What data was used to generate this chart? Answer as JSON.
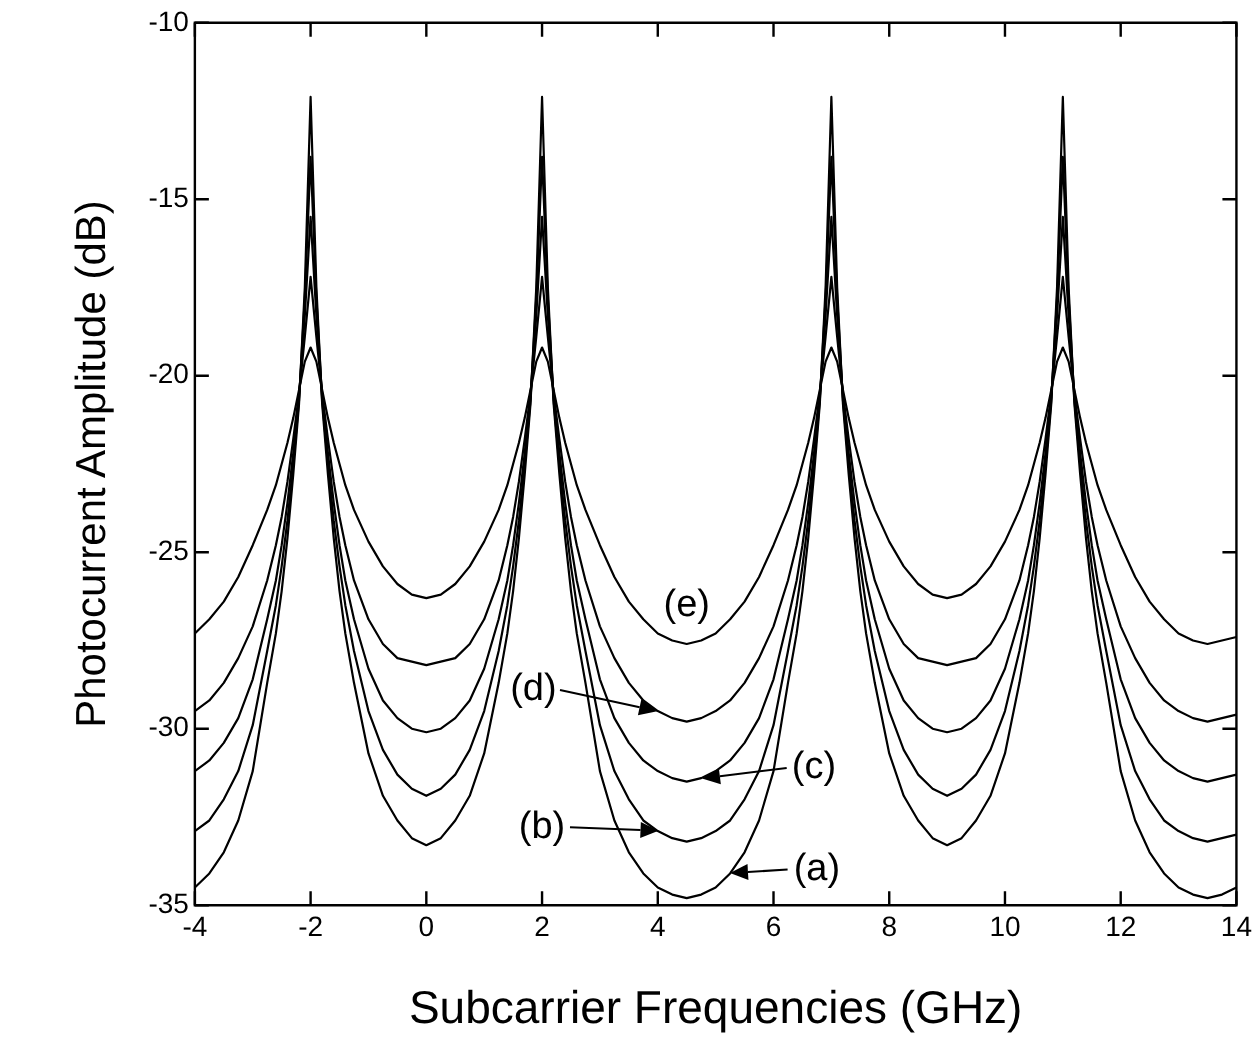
{
  "chart_data": {
    "type": "line",
    "xlabel": "Subcarrier Frequencies (GHz)",
    "ylabel": "Photocurrent Amplitude (dB)",
    "xlim": [
      -4,
      14
    ],
    "ylim": [
      -35,
      -10
    ],
    "xticks": [
      -4,
      -2,
      0,
      2,
      4,
      6,
      8,
      10,
      12,
      14
    ],
    "yticks": [
      -35,
      -30,
      -25,
      -20,
      -15,
      -10
    ],
    "grid": false,
    "legend": false,
    "marker": "none",
    "line_style": "solid",
    "x": [
      -4,
      -3.75,
      -3.5,
      -3.25,
      -3,
      -2.75,
      -2.6,
      -2.5,
      -2.4,
      -2.3,
      -2.2,
      -2.1,
      -2,
      -1.9,
      -1.8,
      -1.7,
      -1.6,
      -1.5,
      -1.4,
      -1.25,
      -1,
      -0.75,
      -0.5,
      -0.25,
      0,
      0.25,
      0.5,
      0.75,
      1,
      1.25,
      1.4,
      1.5,
      1.6,
      1.7,
      1.8,
      1.9,
      2,
      2.1,
      2.2,
      2.3,
      2.4,
      2.5,
      2.6,
      2.75,
      3,
      3.25,
      3.5,
      3.75,
      4,
      4.25,
      4.5,
      4.75,
      5,
      5.25,
      5.5,
      5.75,
      6,
      6.25,
      6.4,
      6.5,
      6.6,
      6.7,
      6.8,
      6.9,
      7,
      7.1,
      7.2,
      7.3,
      7.4,
      7.5,
      7.6,
      7.75,
      8,
      8.25,
      8.5,
      8.75,
      9,
      9.25,
      9.5,
      9.75,
      10,
      10.25,
      10.4,
      10.5,
      10.6,
      10.7,
      10.8,
      10.9,
      11,
      11.1,
      11.2,
      11.3,
      11.4,
      11.5,
      11.6,
      11.75,
      12,
      12.25,
      12.5,
      12.75,
      13,
      13.25,
      13.5,
      13.75,
      14
    ],
    "series": [
      {
        "color": "#000000",
        "values": [
          -34.5,
          -34.1,
          -33.5,
          -32.6,
          -31.2,
          -28.7,
          -27.3,
          -26.1,
          -24.6,
          -22.8,
          -20.8,
          -17.5,
          -12.1,
          -17.5,
          -20.8,
          -22.8,
          -24.6,
          -26.1,
          -27.3,
          -28.7,
          -30.7,
          -31.9,
          -32.6,
          -33.1,
          -33.3,
          -33.1,
          -32.6,
          -31.9,
          -30.7,
          -28.7,
          -27.3,
          -26.1,
          -24.6,
          -22.8,
          -20.8,
          -17.5,
          -12.1,
          -17.5,
          -20.8,
          -22.8,
          -24.6,
          -26.1,
          -27.3,
          -28.7,
          -31.2,
          -32.6,
          -33.5,
          -34.1,
          -34.5,
          -34.7,
          -34.8,
          -34.7,
          -34.5,
          -34.1,
          -33.5,
          -32.6,
          -31.2,
          -28.7,
          -27.3,
          -26.1,
          -24.6,
          -22.8,
          -20.8,
          -17.5,
          -12.1,
          -17.5,
          -20.8,
          -22.8,
          -24.6,
          -26.1,
          -27.3,
          -28.7,
          -30.7,
          -31.9,
          -32.6,
          -33.1,
          -33.3,
          -33.1,
          -32.6,
          -31.9,
          -30.7,
          -28.7,
          -27.3,
          -26.1,
          -24.6,
          -22.8,
          -20.8,
          -17.5,
          -12.1,
          -17.5,
          -20.8,
          -22.8,
          -24.6,
          -26.1,
          -27.3,
          -28.7,
          -31.2,
          -32.6,
          -33.5,
          -34.1,
          -34.5,
          -34.7,
          -34.8,
          -34.7,
          -34.5
        ]
      },
      {
        "color": "#000000",
        "values": [
          -32.9,
          -32.6,
          -32.0,
          -31.2,
          -29.9,
          -27.8,
          -26.5,
          -25.4,
          -24.1,
          -22.5,
          -20.7,
          -17.8,
          -13.8,
          -17.8,
          -20.7,
          -22.5,
          -24.1,
          -25.4,
          -26.5,
          -27.8,
          -29.5,
          -30.6,
          -31.3,
          -31.7,
          -31.9,
          -31.7,
          -31.3,
          -30.6,
          -29.5,
          -27.8,
          -26.5,
          -25.4,
          -24.1,
          -22.5,
          -20.7,
          -17.8,
          -13.8,
          -17.8,
          -20.7,
          -22.5,
          -24.1,
          -25.4,
          -26.5,
          -27.8,
          -29.9,
          -31.2,
          -32.0,
          -32.6,
          -32.9,
          -33.1,
          -33.2,
          -33.1,
          -32.9,
          -32.6,
          -32.0,
          -31.2,
          -29.9,
          -27.8,
          -26.5,
          -25.4,
          -24.1,
          -22.5,
          -20.7,
          -17.8,
          -13.8,
          -17.8,
          -20.7,
          -22.5,
          -24.1,
          -25.4,
          -26.5,
          -27.8,
          -29.5,
          -30.6,
          -31.3,
          -31.7,
          -31.9,
          -31.7,
          -31.3,
          -30.6,
          -29.5,
          -27.8,
          -26.5,
          -25.4,
          -24.1,
          -22.5,
          -20.7,
          -17.8,
          -13.8,
          -17.8,
          -20.7,
          -22.5,
          -24.1,
          -25.4,
          -26.5,
          -27.8,
          -29.9,
          -31.2,
          -32.0,
          -32.6,
          -32.9,
          -33.1,
          -33.2,
          -33.1,
          -33.0
        ]
      },
      {
        "color": "#000000",
        "values": [
          -31.2,
          -30.9,
          -30.4,
          -29.7,
          -28.6,
          -26.9,
          -25.8,
          -24.8,
          -23.6,
          -22.2,
          -20.6,
          -18.3,
          -15.5,
          -18.3,
          -20.6,
          -22.2,
          -23.6,
          -24.8,
          -25.8,
          -26.9,
          -28.3,
          -29.2,
          -29.7,
          -30.0,
          -30.1,
          -30.0,
          -29.7,
          -29.2,
          -28.3,
          -26.9,
          -25.8,
          -24.8,
          -23.6,
          -22.2,
          -20.6,
          -18.3,
          -15.5,
          -18.3,
          -20.6,
          -22.2,
          -23.6,
          -24.8,
          -25.8,
          -26.9,
          -28.6,
          -29.7,
          -30.4,
          -30.9,
          -31.2,
          -31.4,
          -31.5,
          -31.4,
          -31.2,
          -30.9,
          -30.4,
          -29.7,
          -28.6,
          -26.9,
          -25.8,
          -24.8,
          -23.6,
          -22.2,
          -20.6,
          -18.3,
          -15.5,
          -18.3,
          -20.6,
          -22.2,
          -23.6,
          -24.8,
          -25.8,
          -26.9,
          -28.3,
          -29.2,
          -29.7,
          -30.0,
          -30.1,
          -30.0,
          -29.7,
          -29.2,
          -28.3,
          -26.9,
          -25.8,
          -24.8,
          -23.6,
          -22.2,
          -20.6,
          -18.3,
          -15.5,
          -18.3,
          -20.6,
          -22.2,
          -23.6,
          -24.8,
          -25.8,
          -26.9,
          -28.6,
          -29.7,
          -30.4,
          -30.9,
          -31.2,
          -31.4,
          -31.5,
          -31.4,
          -31.3
        ]
      },
      {
        "color": "#000000",
        "values": [
          -29.5,
          -29.2,
          -28.7,
          -28.0,
          -27.1,
          -25.8,
          -24.8,
          -24.0,
          -23.0,
          -21.8,
          -20.5,
          -18.9,
          -17.2,
          -18.9,
          -20.5,
          -21.8,
          -23.0,
          -24.0,
          -24.8,
          -25.8,
          -26.9,
          -27.6,
          -28.0,
          -28.1,
          -28.2,
          -28.1,
          -28.0,
          -27.6,
          -26.9,
          -25.8,
          -24.8,
          -24.0,
          -23.0,
          -21.8,
          -20.5,
          -18.9,
          -17.2,
          -18.9,
          -20.5,
          -21.8,
          -23.0,
          -24.0,
          -24.8,
          -25.8,
          -27.1,
          -28.0,
          -28.7,
          -29.2,
          -29.5,
          -29.7,
          -29.8,
          -29.7,
          -29.5,
          -29.2,
          -28.7,
          -28.0,
          -27.1,
          -25.8,
          -24.8,
          -24.0,
          -23.0,
          -21.8,
          -20.5,
          -18.9,
          -17.2,
          -18.9,
          -20.5,
          -21.8,
          -23.0,
          -24.0,
          -24.8,
          -25.8,
          -26.9,
          -27.6,
          -28.0,
          -28.1,
          -28.2,
          -28.1,
          -28.0,
          -27.6,
          -26.9,
          -25.8,
          -24.8,
          -24.0,
          -23.0,
          -21.8,
          -20.5,
          -18.9,
          -17.2,
          -18.9,
          -20.5,
          -21.8,
          -23.0,
          -24.0,
          -24.8,
          -25.8,
          -27.1,
          -28.0,
          -28.7,
          -29.2,
          -29.5,
          -29.7,
          -29.8,
          -29.7,
          -29.6
        ]
      },
      {
        "color": "#000000",
        "values": [
          -27.3,
          -26.9,
          -26.4,
          -25.7,
          -24.8,
          -23.8,
          -23.1,
          -22.5,
          -21.9,
          -21.2,
          -20.4,
          -19.6,
          -19.2,
          -19.6,
          -20.4,
          -21.2,
          -21.9,
          -22.5,
          -23.1,
          -23.8,
          -24.7,
          -25.4,
          -25.9,
          -26.2,
          -26.3,
          -26.2,
          -25.9,
          -25.4,
          -24.7,
          -23.8,
          -23.1,
          -22.5,
          -21.9,
          -21.2,
          -20.4,
          -19.6,
          -19.2,
          -19.6,
          -20.4,
          -21.2,
          -21.9,
          -22.5,
          -23.1,
          -23.8,
          -24.8,
          -25.7,
          -26.4,
          -26.9,
          -27.3,
          -27.5,
          -27.6,
          -27.5,
          -27.3,
          -26.9,
          -26.4,
          -25.7,
          -24.8,
          -23.8,
          -23.1,
          -22.5,
          -21.9,
          -21.2,
          -20.4,
          -19.6,
          -19.2,
          -19.6,
          -20.4,
          -21.2,
          -21.9,
          -22.5,
          -23.1,
          -23.8,
          -24.7,
          -25.4,
          -25.9,
          -26.2,
          -26.3,
          -26.2,
          -25.9,
          -25.4,
          -24.7,
          -23.8,
          -23.1,
          -22.5,
          -21.9,
          -21.2,
          -20.4,
          -19.6,
          -19.2,
          -19.6,
          -20.4,
          -21.2,
          -21.9,
          -22.5,
          -23.1,
          -23.8,
          -24.8,
          -25.7,
          -26.4,
          -26.9,
          -27.3,
          -27.5,
          -27.6,
          -27.5,
          -27.4
        ]
      }
    ],
    "annotations": [
      {
        "text": "(a)",
        "x": 5.25,
        "y": -34.1
      },
      {
        "text": "(b)",
        "x": 4,
        "y": -32.9
      },
      {
        "text": "(c)",
        "x": 4.75,
        "y": -31.4
      },
      {
        "text": "(d)",
        "x": 4,
        "y": -29.5
      },
      {
        "text": "(e)",
        "x": 4.5,
        "y": -27.6
      }
    ]
  }
}
